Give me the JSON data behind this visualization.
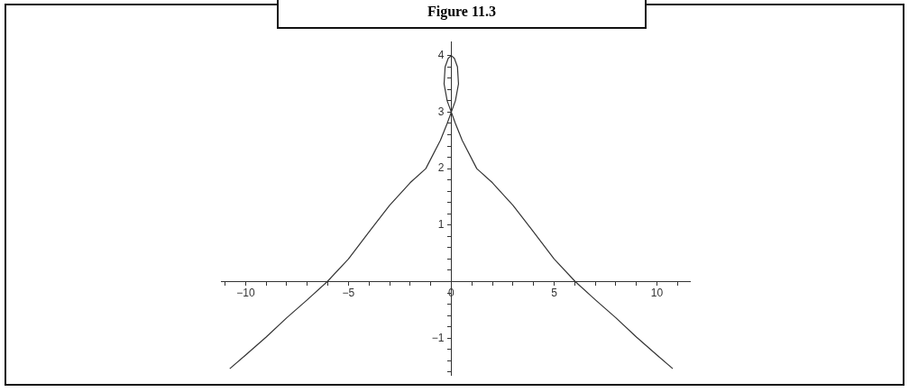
{
  "chart_data": {
    "type": "line",
    "title": "Figure 11.3",
    "x": [
      -10.77,
      -10,
      -9,
      -8,
      -7,
      -6.03,
      -5,
      -4,
      -3,
      -2,
      -1.24,
      -0.53,
      -0.2,
      0,
      0.2,
      0.35,
      0.3,
      0.15,
      0,
      -0.15,
      -0.3,
      -0.35,
      -0.2,
      0,
      0.2,
      0.53,
      1.24,
      2,
      3,
      4,
      5,
      6.03,
      7,
      8,
      9,
      10,
      10.77
    ],
    "series": [
      {
        "color": "#333333",
        "values": [
          -1.54,
          -1.3,
          -0.98,
          -0.64,
          -0.32,
          0,
          0.4,
          0.88,
          1.35,
          1.75,
          2,
          2.5,
          2.8,
          3,
          3.2,
          3.5,
          3.8,
          3.95,
          4,
          3.95,
          3.8,
          3.5,
          3.2,
          3,
          2.8,
          2.5,
          2,
          1.75,
          1.35,
          0.88,
          0.4,
          0,
          -0.32,
          -0.64,
          -0.98,
          -1.3,
          -1.54
        ]
      }
    ],
    "xlim": [
      -11.2,
      11.6
    ],
    "ylim": [
      -1.65,
      4.25
    ],
    "xticks": [
      -10,
      -5,
      0,
      5,
      10,
      {
        "value": -11,
        "label": null
      },
      {
        "value": -9,
        "label": null
      },
      {
        "value": -8,
        "label": null
      },
      {
        "value": -7,
        "label": null
      },
      {
        "value": -6,
        "label": null
      },
      {
        "value": -4,
        "label": null
      },
      {
        "value": -3,
        "label": null
      },
      {
        "value": -2,
        "label": null
      },
      {
        "value": -1,
        "label": null
      },
      {
        "value": 1,
        "label": null
      },
      {
        "value": 2,
        "label": null
      },
      {
        "value": 3,
        "label": null
      },
      {
        "value": 4,
        "label": null
      },
      {
        "value": 6,
        "label": null
      },
      {
        "value": 7,
        "label": null
      },
      {
        "value": 8,
        "label": null
      },
      {
        "value": 9,
        "label": null
      },
      {
        "value": 11,
        "label": null
      }
    ],
    "yticks": [
      -1,
      1,
      2,
      3,
      4,
      {
        "value": -1.6,
        "label": null
      },
      {
        "value": -1.4,
        "label": null
      },
      {
        "value": -1.2,
        "label": null
      },
      {
        "value": -0.8,
        "label": null
      },
      {
        "value": -0.6,
        "label": null
      },
      {
        "value": -0.4,
        "label": null
      },
      {
        "value": -0.2,
        "label": null
      },
      {
        "value": 0.2,
        "label": null
      },
      {
        "value": 0.4,
        "label": null
      },
      {
        "value": 0.6,
        "label": null
      },
      {
        "value": 0.8,
        "label": null
      },
      {
        "value": 1.2,
        "label": null
      },
      {
        "value": 1.4,
        "label": null
      },
      {
        "value": 1.6,
        "label": null
      },
      {
        "value": 1.8,
        "label": null
      },
      {
        "value": 2.2,
        "label": null
      },
      {
        "value": 2.4,
        "label": null
      },
      {
        "value": 2.6,
        "label": null
      },
      {
        "value": 2.8,
        "label": null
      },
      {
        "value": 3.2,
        "label": null
      },
      {
        "value": 3.4,
        "label": null
      },
      {
        "value": 3.6,
        "label": null
      },
      {
        "value": 3.8,
        "label": null
      }
    ],
    "grid": false,
    "legend": false,
    "marker": "none",
    "line_style": "solid"
  }
}
